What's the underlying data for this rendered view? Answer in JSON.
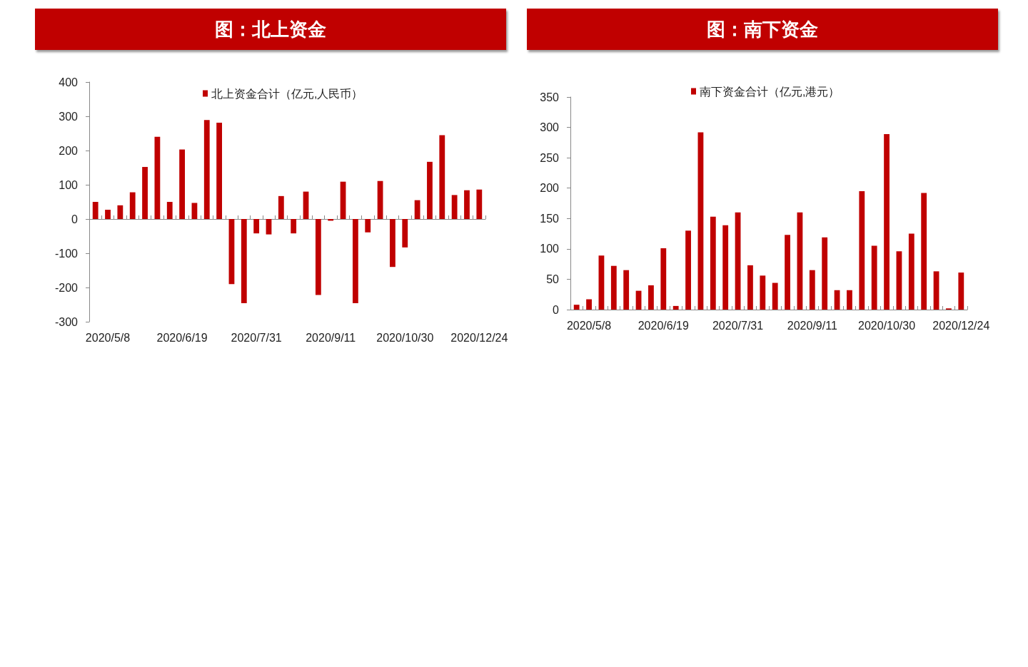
{
  "chart_data": [
    {
      "type": "bar",
      "title": "图：北上资金",
      "categories": [
        null,
        "2020/5/8",
        null,
        null,
        null,
        null,
        null,
        "2020/6/19",
        null,
        null,
        null,
        null,
        null,
        "2020/7/31",
        null,
        null,
        null,
        null,
        null,
        "2020/9/11",
        null,
        null,
        null,
        null,
        null,
        "2020/10/30",
        null,
        null,
        null,
        null,
        null,
        "2020/12/24"
      ],
      "series": [
        {
          "name": "北上资金合计（亿元,人民币）",
          "color": "#c00000",
          "values": [
            50,
            27,
            40,
            78,
            152,
            240,
            50,
            203,
            47,
            289,
            281,
            -190,
            -246,
            -42,
            -45,
            67,
            -42,
            80,
            -222,
            -5,
            109,
            -246,
            -39,
            111,
            -140,
            -83,
            55,
            167,
            245,
            70,
            84,
            86
          ]
        }
      ],
      "ylim": [
        -300,
        400
      ],
      "yticks": [
        -300,
        -200,
        -100,
        0,
        100,
        200,
        300,
        400
      ],
      "legend": "top"
    },
    {
      "type": "bar",
      "title": "图：南下资金",
      "categories": [
        null,
        "2020/5/8",
        null,
        null,
        null,
        null,
        null,
        "2020/6/19",
        null,
        null,
        null,
        null,
        null,
        "2020/7/31",
        null,
        null,
        null,
        null,
        null,
        "2020/9/11",
        null,
        null,
        null,
        null,
        null,
        "2020/10/30",
        null,
        null,
        null,
        null,
        null,
        "2020/12/24"
      ],
      "series": [
        {
          "name": "南下资金合计（亿元,港元）",
          "color": "#c00000",
          "values": [
            8,
            17,
            89,
            72,
            65,
            31,
            40,
            101,
            6,
            130,
            292,
            153,
            139,
            160,
            73,
            56,
            44,
            123,
            160,
            65,
            119,
            32,
            32,
            195,
            105,
            289,
            96,
            125,
            192,
            63,
            2,
            61
          ]
        }
      ],
      "ylim": [
        0,
        350
      ],
      "yticks": [
        0,
        50,
        100,
        150,
        200,
        250,
        300,
        350
      ],
      "legend": "top"
    }
  ]
}
